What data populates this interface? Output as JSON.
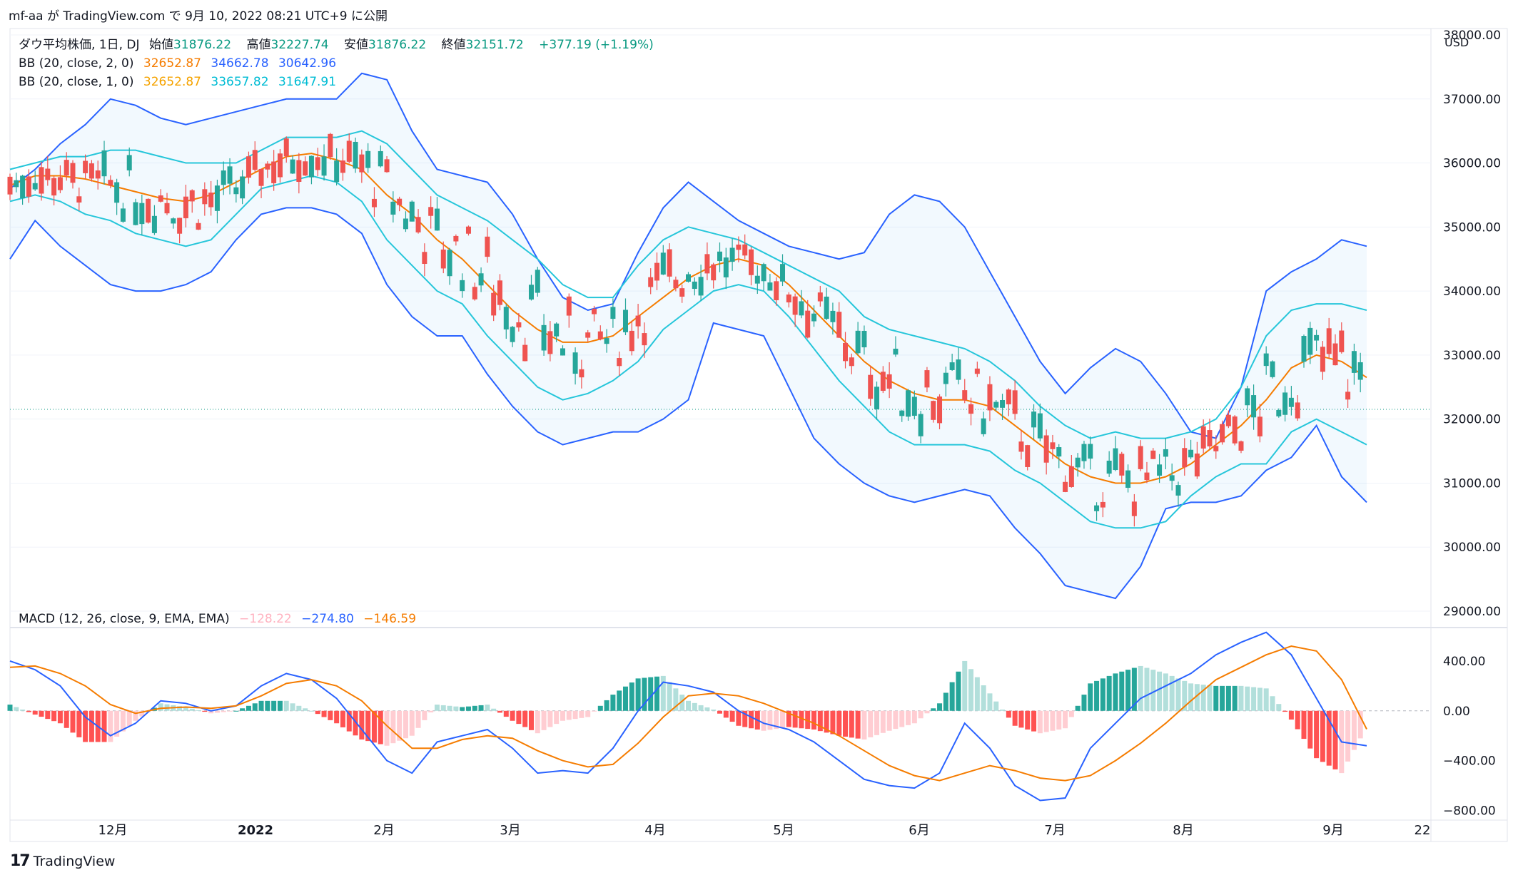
{
  "header": {
    "publish_line": "mf-aa が TradingView.com で 9月 10, 2022 08:21 UTC+9 に公開",
    "currency": "USD"
  },
  "legend": {
    "symbol": "ダウ平均株価, 1日, DJ",
    "open_label": "始値",
    "open": "31876.22",
    "high_label": "高値",
    "high": "32227.74",
    "low_label": "安値",
    "low": "31876.22",
    "close_label": "終値",
    "close": "32151.72",
    "change": "+377.19 (+1.19%)",
    "bb2_name": "BB (20, close, 2, 0)",
    "bb2_basis": "32652.87",
    "bb2_upper": "34662.78",
    "bb2_lower": "30642.96",
    "bb1_name": "BB (20, close, 1, 0)",
    "bb1_basis": "32652.87",
    "bb1_upper": "33657.82",
    "bb1_lower": "31647.91"
  },
  "macd_legend": {
    "name": "MACD (12, 26, close, 9, EMA, EMA)",
    "hist": "−128.22",
    "macd": "−274.80",
    "signal": "−146.59"
  },
  "footer": {
    "brand": "TradingView",
    "logo_glyph": "17"
  },
  "colors": {
    "up": "#26a69a",
    "down": "#ef5350",
    "bb2_band": "#2962ff",
    "bb1_band": "#26c6da",
    "basis": "#f57c00",
    "macd_line": "#2962ff",
    "signal_line": "#f57c00",
    "hist_up_strong": "#26a69a",
    "hist_up_weak": "#b2dfdb",
    "hist_down_strong": "#ff5252",
    "hist_down_weak": "#ffcdd2"
  },
  "chart_data": [
    {
      "type": "candlestick",
      "title": "ダウ平均株価, 1日, DJ",
      "y_axis_ticks": [
        29000,
        30000,
        31000,
        32000,
        33000,
        34000,
        35000,
        36000,
        37000,
        38000
      ],
      "y_tick_labels": [
        "29000.00",
        "30000.00",
        "31000.00",
        "32000.00",
        "33000.00",
        "34000.00",
        "35000.00",
        "36000.00",
        "37000.00",
        "38000.00"
      ],
      "ylim": [
        28900,
        38100
      ],
      "x_tick_labels": [
        "12月",
        "2022",
        "2月",
        "3月",
        "4月",
        "5月",
        "6月",
        "7月",
        "8月",
        "9月",
        "22"
      ],
      "last_close_line": 32151.72,
      "series": [
        {
          "name": "BB upper (2σ)",
          "values": [
            35600,
            35900,
            36300,
            36600,
            37000,
            36900,
            36700,
            36600,
            36700,
            36800,
            36900,
            37000,
            37000,
            37000,
            37400,
            37300,
            36500,
            35900,
            35800,
            35700,
            35200,
            34500,
            33900,
            33700,
            33800,
            34600,
            35300,
            35700,
            35400,
            35100,
            34900,
            34700,
            34600,
            34500,
            34600,
            35200,
            35500,
            35400,
            35000,
            34300,
            33600,
            32900,
            32400,
            32800,
            33100,
            32900,
            32400,
            31800,
            31700,
            32500,
            34000,
            34300,
            34500,
            34800,
            34700
          ]
        },
        {
          "name": "BB upper (1σ)",
          "values": [
            35900,
            36000,
            36100,
            36100,
            36200,
            36200,
            36100,
            36000,
            36000,
            36000,
            36200,
            36400,
            36400,
            36400,
            36500,
            36300,
            35900,
            35500,
            35300,
            35100,
            34800,
            34500,
            34100,
            33900,
            33900,
            34400,
            34800,
            35000,
            34900,
            34800,
            34600,
            34400,
            34200,
            34000,
            33600,
            33400,
            33300,
            33200,
            33100,
            32900,
            32600,
            32200,
            31900,
            31700,
            31800,
            31700,
            31700,
            31800,
            32000,
            32500,
            33300,
            33700,
            33800,
            33800,
            33700
          ]
        },
        {
          "name": "BB basis",
          "values": [
            35650,
            35800,
            35800,
            35750,
            35650,
            35550,
            35450,
            35400,
            35500,
            35700,
            35900,
            36100,
            36150,
            36050,
            35900,
            35500,
            35200,
            34800,
            34500,
            34100,
            33700,
            33400,
            33200,
            33200,
            33300,
            33600,
            33900,
            34200,
            34400,
            34500,
            34400,
            34100,
            33700,
            33300,
            32900,
            32600,
            32400,
            32300,
            32300,
            32200,
            31900,
            31600,
            31300,
            31100,
            31000,
            31000,
            31100,
            31300,
            31600,
            31900,
            32300,
            32800,
            33000,
            32900,
            32650
          ]
        },
        {
          "name": "BB lower (1σ)",
          "values": [
            35400,
            35500,
            35400,
            35200,
            35100,
            34900,
            34800,
            34700,
            34800,
            35200,
            35600,
            35700,
            35800,
            35700,
            35400,
            34800,
            34400,
            34000,
            33800,
            33300,
            32900,
            32500,
            32300,
            32400,
            32600,
            32900,
            33400,
            33700,
            34000,
            34100,
            34000,
            33600,
            33100,
            32600,
            32200,
            31800,
            31600,
            31600,
            31600,
            31500,
            31200,
            31000,
            30700,
            30400,
            30300,
            30300,
            30400,
            30800,
            31100,
            31300,
            31300,
            31800,
            32000,
            31800,
            31600
          ]
        },
        {
          "name": "BB lower (2σ)",
          "values": [
            34500,
            35100,
            34700,
            34400,
            34100,
            34000,
            34000,
            34100,
            34300,
            34800,
            35200,
            35300,
            35300,
            35200,
            34900,
            34100,
            33600,
            33300,
            33300,
            32700,
            32200,
            31800,
            31600,
            31700,
            31800,
            31800,
            32000,
            32300,
            33500,
            33400,
            33300,
            32500,
            31700,
            31300,
            31000,
            30800,
            30700,
            30800,
            30900,
            30800,
            30300,
            29900,
            29400,
            29300,
            29200,
            29700,
            30600,
            30700,
            30700,
            30800,
            31200,
            31400,
            31900,
            31100,
            30700
          ]
        }
      ]
    },
    {
      "type": "line",
      "title": "MACD (12, 26, close, 9, EMA, EMA)",
      "y_tick_labels": [
        "400.00",
        "0.00",
        "−400.00",
        "−800.00"
      ],
      "ylim": [
        -820,
        640
      ],
      "series": [
        {
          "name": "MACD",
          "values": [
            400,
            330,
            200,
            -50,
            -200,
            -100,
            80,
            60,
            0,
            40,
            200,
            300,
            250,
            100,
            -150,
            -400,
            -500,
            -250,
            -200,
            -150,
            -300,
            -500,
            -480,
            -500,
            -300,
            0,
            230,
            200,
            150,
            0,
            -100,
            -150,
            -250,
            -400,
            -550,
            -600,
            -620,
            -500,
            -100,
            -300,
            -600,
            -720,
            -700,
            -300,
            -100,
            100,
            200,
            300,
            450,
            550,
            630,
            450,
            100,
            -250,
            -280
          ]
        },
        {
          "name": "Signal",
          "values": [
            350,
            360,
            300,
            200,
            50,
            -20,
            20,
            30,
            20,
            40,
            120,
            220,
            250,
            200,
            80,
            -120,
            -300,
            -300,
            -230,
            -200,
            -220,
            -320,
            -400,
            -450,
            -430,
            -260,
            -50,
            120,
            140,
            120,
            60,
            -20,
            -100,
            -200,
            -320,
            -440,
            -520,
            -560,
            -500,
            -440,
            -480,
            -540,
            -560,
            -520,
            -400,
            -260,
            -100,
            80,
            250,
            350,
            450,
            520,
            480,
            250,
            -147
          ]
        },
        {
          "name": "Histogram",
          "values": [
            50,
            -30,
            -100,
            -250,
            -250,
            -80,
            60,
            30,
            -20,
            0,
            80,
            80,
            0,
            -100,
            -230,
            -280,
            -200,
            50,
            30,
            50,
            -80,
            -180,
            -80,
            -50,
            130,
            260,
            280,
            80,
            10,
            -120,
            -160,
            -130,
            -150,
            -200,
            -230,
            -160,
            -100,
            60,
            400,
            140,
            -120,
            -180,
            -140,
            220,
            300,
            360,
            300,
            220,
            200,
            200,
            180,
            -70,
            -380,
            -500,
            -128
          ]
        }
      ]
    }
  ]
}
